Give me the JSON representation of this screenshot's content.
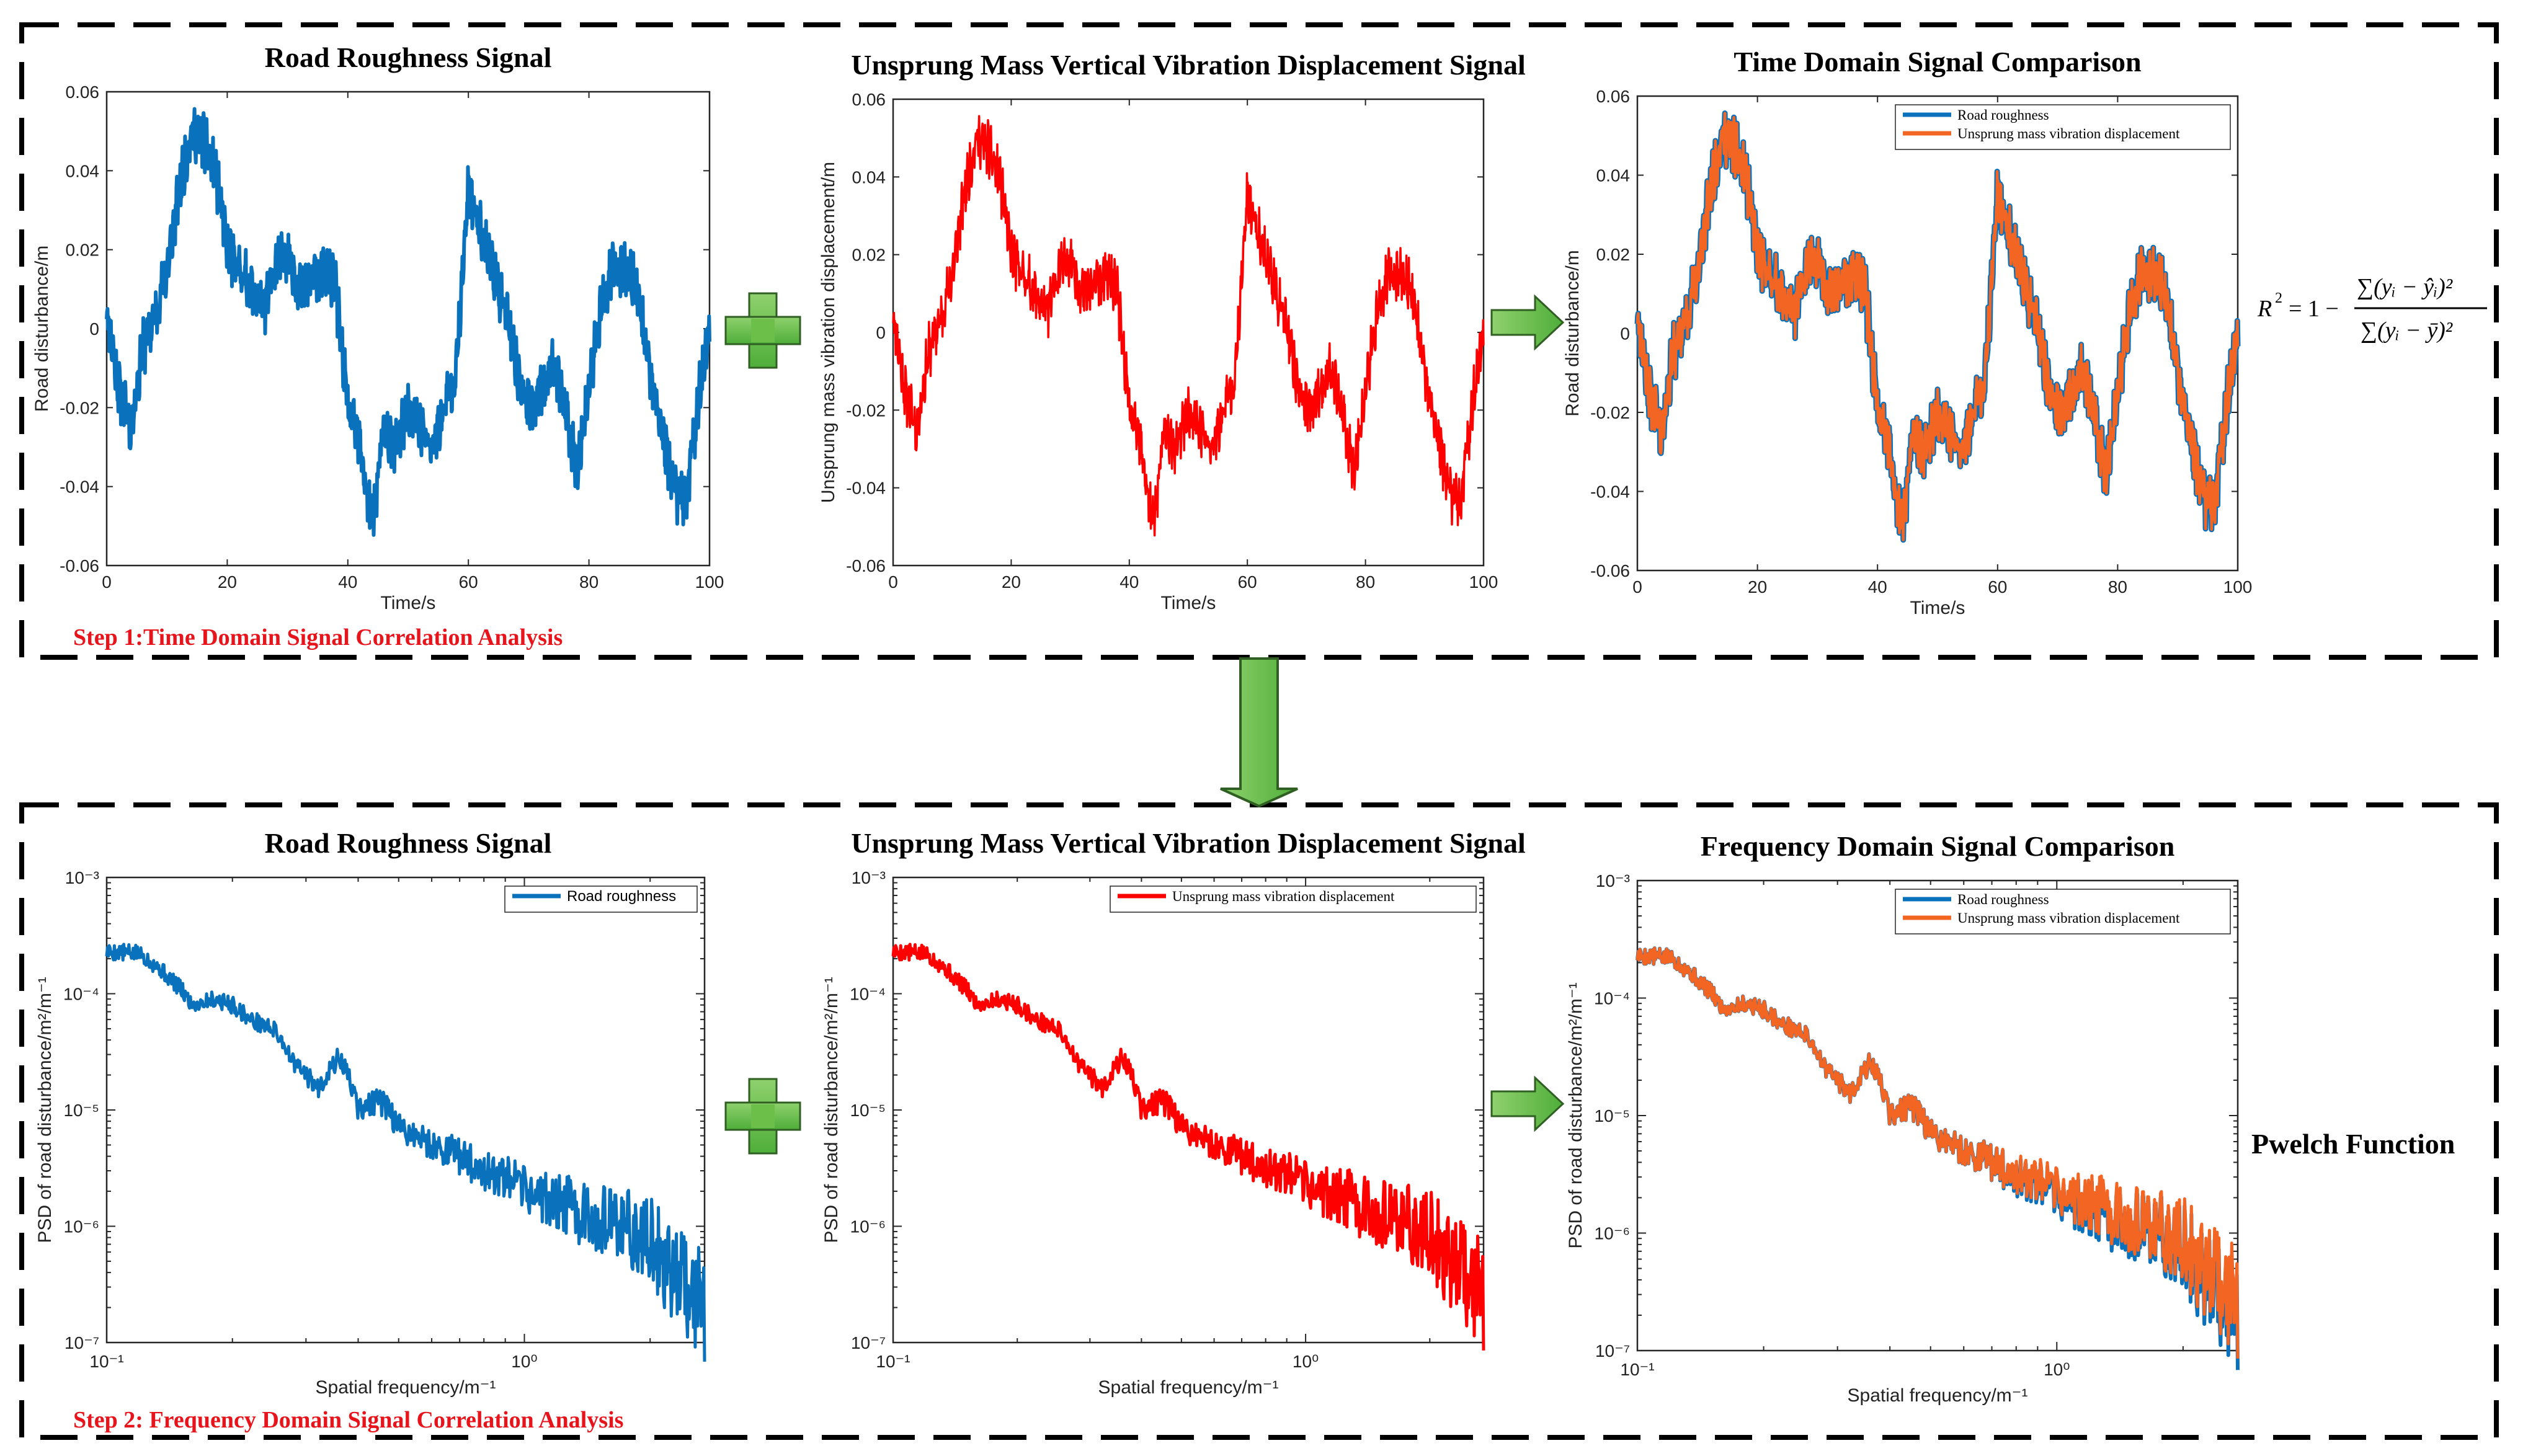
{
  "colors": {
    "blue": "#0a72bd",
    "red": "#ff0000",
    "orange": "#f26522",
    "green": "#6cc04a",
    "step": "#e8141b"
  },
  "step1_label": "Step 1:Time Domain Signal Correlation Analysis",
  "step2_label": "Step 2: Frequency Domain Signal Correlation Analysis",
  "formula": {
    "lhs": "R",
    "sup": "2",
    "eq": "= 1 −",
    "num": "∑(yᵢ − ŷᵢ)²",
    "den": "∑(yᵢ − ȳ)²"
  },
  "pwelch_label": "Pwelch Function",
  "chart_data": [
    {
      "id": "time_road",
      "type": "line",
      "title": "Road Roughness Signal",
      "xlabel": "Time/s",
      "ylabel": "Road disturbance/m",
      "xlim": [
        0,
        100
      ],
      "ylim": [
        -0.06,
        0.06
      ],
      "xticks": [
        "0",
        "20",
        "40",
        "60",
        "80",
        "100"
      ],
      "yticks": [
        "-0.06",
        "-0.04",
        "-0.02",
        "0",
        "0.02",
        "0.04",
        "0.06"
      ],
      "series": [
        {
          "name": "Road roughness",
          "color": "#0a72bd",
          "x": [
            0,
            2,
            4,
            6,
            8,
            10,
            12,
            14,
            16,
            18,
            20,
            22,
            24,
            26,
            28,
            30,
            32,
            34,
            36,
            38,
            40,
            42,
            44,
            46,
            48,
            50,
            52,
            54,
            56,
            58,
            60,
            62,
            64,
            66,
            68,
            70,
            72,
            74,
            76,
            78,
            80,
            82,
            84,
            86,
            88,
            90,
            92,
            94,
            96,
            98,
            100
          ],
          "y": [
            0.005,
            -0.015,
            -0.025,
            -0.005,
            0.003,
            0.015,
            0.035,
            0.05,
            0.048,
            0.04,
            0.02,
            0.015,
            0.01,
            0.005,
            0.015,
            0.02,
            0.01,
            0.012,
            0.015,
            0.01,
            -0.02,
            -0.03,
            -0.05,
            -0.025,
            -0.03,
            -0.02,
            -0.025,
            -0.03,
            -0.02,
            -0.01,
            0.035,
            0.025,
            0.015,
            0.005,
            -0.01,
            -0.02,
            -0.015,
            -0.01,
            -0.02,
            -0.035,
            -0.015,
            0.005,
            0.015,
            0.015,
            0.01,
            -0.01,
            -0.025,
            -0.04,
            -0.045,
            -0.02,
            0.0
          ]
        }
      ]
    },
    {
      "id": "time_unsprung",
      "type": "line",
      "title": "Unsprung Mass Vertical Vibration Displacement Signal",
      "xlabel": "Time/s",
      "ylabel": "Unsprung mass vibration displacement/m",
      "xlim": [
        0,
        100
      ],
      "ylim": [
        -0.06,
        0.06
      ],
      "xticks": [
        "0",
        "20",
        "40",
        "60",
        "80",
        "100"
      ],
      "yticks": [
        "-0.06",
        "-0.04",
        "-0.02",
        "0",
        "0.02",
        "0.04",
        "0.06"
      ],
      "series": [
        {
          "name": "Unsprung mass vibration displacement",
          "color": "#ff0000",
          "x": [
            0,
            2,
            4,
            6,
            8,
            10,
            12,
            14,
            16,
            18,
            20,
            22,
            24,
            26,
            28,
            30,
            32,
            34,
            36,
            38,
            40,
            42,
            44,
            46,
            48,
            50,
            52,
            54,
            56,
            58,
            60,
            62,
            64,
            66,
            68,
            70,
            72,
            74,
            76,
            78,
            80,
            82,
            84,
            86,
            88,
            90,
            92,
            94,
            96,
            98,
            100
          ],
          "y": [
            0.005,
            -0.015,
            -0.025,
            -0.005,
            0.003,
            0.015,
            0.035,
            0.05,
            0.048,
            0.04,
            0.02,
            0.015,
            0.01,
            0.005,
            0.015,
            0.02,
            0.01,
            0.012,
            0.015,
            0.01,
            -0.02,
            -0.03,
            -0.05,
            -0.025,
            -0.03,
            -0.02,
            -0.025,
            -0.03,
            -0.02,
            -0.01,
            0.035,
            0.025,
            0.015,
            0.005,
            -0.01,
            -0.02,
            -0.015,
            -0.01,
            -0.02,
            -0.035,
            -0.015,
            0.005,
            0.015,
            0.015,
            0.01,
            -0.01,
            -0.025,
            -0.04,
            -0.045,
            -0.02,
            0.0
          ]
        }
      ]
    },
    {
      "id": "time_compare",
      "type": "line",
      "title": "Time Domain Signal Comparison",
      "xlabel": "Time/s",
      "ylabel": "Road disturbance/m",
      "xlim": [
        0,
        100
      ],
      "ylim": [
        -0.06,
        0.06
      ],
      "xticks": [
        "0",
        "20",
        "40",
        "60",
        "80",
        "100"
      ],
      "yticks": [
        "-0.06",
        "-0.04",
        "-0.02",
        "0",
        "0.02",
        "0.04",
        "0.06"
      ],
      "legend": "top-right",
      "series": [
        {
          "name": "Road roughness",
          "color": "#0a72bd"
        },
        {
          "name": "Unsprung mass vibration displacement",
          "color": "#f26522"
        }
      ]
    },
    {
      "id": "freq_road",
      "type": "line",
      "xscale": "log",
      "yscale": "log",
      "title": "Road Roughness Signal",
      "xlabel": "Spatial frequency/m⁻¹",
      "ylabel": "PSD of road disturbance/m²/m⁻¹",
      "xlim": [
        0.1,
        2.7
      ],
      "ylim": [
        1e-07,
        0.001
      ],
      "xticks": [
        "10⁻¹",
        "10⁰"
      ],
      "yticks": [
        "10⁻⁷",
        "10⁻⁶",
        "10⁻⁵",
        "10⁻⁴",
        "10⁻³"
      ],
      "legend": "top-right",
      "series": [
        {
          "name": "Road roughness",
          "color": "#0a72bd",
          "x": [
            0.1,
            0.12,
            0.14,
            0.16,
            0.18,
            0.2,
            0.22,
            0.25,
            0.28,
            0.32,
            0.36,
            0.4,
            0.45,
            0.5,
            0.6,
            0.7,
            0.8,
            0.9,
            1.0,
            1.2,
            1.4,
            1.6,
            1.8,
            2.0,
            2.2,
            2.4,
            2.7
          ],
          "y": [
            0.00023,
            0.00022,
            0.00014,
            8e-05,
            9e-05,
            8e-05,
            6e-05,
            5e-05,
            2.5e-05,
            1.5e-05,
            2.8e-05,
            1e-05,
            1.2e-05,
            7e-06,
            5e-06,
            4e-06,
            3e-06,
            2.5e-06,
            2e-06,
            1.6e-06,
            1.3e-06,
            1.1e-06,
            9e-07,
            7e-07,
            5e-07,
            4e-07,
            2e-07
          ]
        }
      ]
    },
    {
      "id": "freq_unsprung",
      "type": "line",
      "xscale": "log",
      "yscale": "log",
      "title": "Unsprung Mass Vertical Vibration Displacement Signal",
      "xlabel": "Spatial frequency/m⁻¹",
      "ylabel": "PSD of road disturbance/m²/m⁻¹",
      "xlim": [
        0.1,
        2.7
      ],
      "ylim": [
        1e-07,
        0.001
      ],
      "xticks": [
        "10⁻¹",
        "10⁰"
      ],
      "yticks": [
        "10⁻⁷",
        "10⁻⁶",
        "10⁻⁵",
        "10⁻⁴",
        "10⁻³"
      ],
      "legend": "top-right",
      "series": [
        {
          "name": "Unsprung mass vibration displacement",
          "color": "#ff0000",
          "x": [
            0.1,
            0.12,
            0.14,
            0.16,
            0.18,
            0.2,
            0.22,
            0.25,
            0.28,
            0.32,
            0.36,
            0.4,
            0.45,
            0.5,
            0.6,
            0.7,
            0.8,
            0.9,
            1.0,
            1.2,
            1.4,
            1.6,
            1.8,
            2.0,
            2.2,
            2.4,
            2.7
          ],
          "y": [
            0.00023,
            0.00022,
            0.00014,
            8e-05,
            9e-05,
            8e-05,
            6e-05,
            5e-05,
            2.5e-05,
            1.5e-05,
            2.8e-05,
            1e-05,
            1.2e-05,
            7e-06,
            5e-06,
            4e-06,
            3.2e-06,
            2.7e-06,
            2.2e-06,
            1.8e-06,
            1.5e-06,
            1.2e-06,
            1e-06,
            8e-07,
            6e-07,
            5e-07,
            2.5e-07
          ]
        }
      ]
    },
    {
      "id": "freq_compare",
      "type": "line",
      "xscale": "log",
      "yscale": "log",
      "title": "Frequency Domain Signal Comparison",
      "xlabel": "Spatial frequency/m⁻¹",
      "ylabel": "PSD of road disturbance/m²/m⁻¹",
      "xlim": [
        0.1,
        2.7
      ],
      "ylim": [
        1e-07,
        0.001
      ],
      "xticks": [
        "10⁻¹",
        "10⁰"
      ],
      "yticks": [
        "10⁻⁷",
        "10⁻⁶",
        "10⁻⁵",
        "10⁻⁴",
        "10⁻³"
      ],
      "legend": "top-right",
      "series": [
        {
          "name": "Road roughness",
          "color": "#0a72bd"
        },
        {
          "name": "Unsprung mass vibration displacement",
          "color": "#f26522"
        }
      ]
    }
  ]
}
